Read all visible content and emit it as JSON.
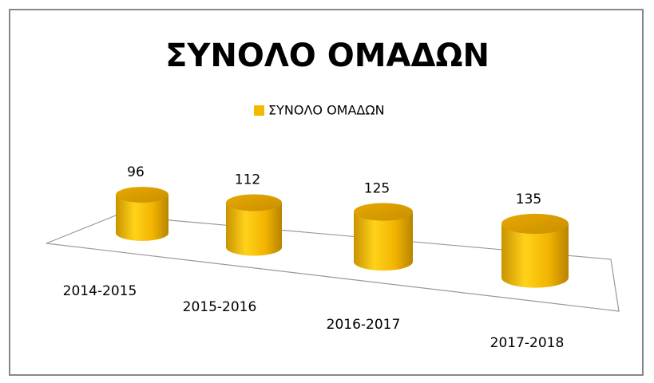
{
  "chart_data": {
    "type": "cylinder",
    "title": "ΣΥΝΟΛΟ ΟΜΑΔΩΝ",
    "categories": [
      "2014-2015",
      "2015-2016",
      "2016-2017",
      "2017-2018"
    ],
    "series": [
      {
        "name": "ΣΥΝΟΛΟ ΟΜΑΔΩΝ",
        "color": "#f5b800",
        "values": [
          96,
          112,
          125,
          135
        ]
      }
    ]
  }
}
